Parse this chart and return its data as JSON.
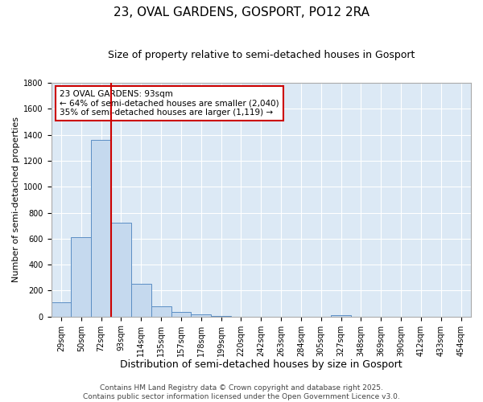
{
  "title1": "23, OVAL GARDENS, GOSPORT, PO12 2RA",
  "title2": "Size of property relative to semi-detached houses in Gosport",
  "xlabel": "Distribution of semi-detached houses by size in Gosport",
  "ylabel": "Number of semi-detached properties",
  "categories": [
    "29sqm",
    "50sqm",
    "72sqm",
    "93sqm",
    "114sqm",
    "135sqm",
    "157sqm",
    "178sqm",
    "199sqm",
    "220sqm",
    "242sqm",
    "263sqm",
    "284sqm",
    "305sqm",
    "327sqm",
    "348sqm",
    "369sqm",
    "390sqm",
    "412sqm",
    "433sqm",
    "454sqm"
  ],
  "values": [
    110,
    610,
    1360,
    725,
    255,
    80,
    35,
    15,
    5,
    0,
    0,
    0,
    0,
    0,
    10,
    0,
    0,
    0,
    0,
    0,
    0
  ],
  "bar_color": "#c5d9ee",
  "bar_edge_color": "#5b8ec4",
  "redline_index": 3,
  "ylim": [
    0,
    1800
  ],
  "yticks": [
    0,
    200,
    400,
    600,
    800,
    1000,
    1200,
    1400,
    1600,
    1800
  ],
  "vline_color": "#cc0000",
  "background_color": "#dce9f5",
  "grid_color": "#ffffff",
  "annotation_line1": "23 OVAL GARDENS: 93sqm",
  "annotation_line2": "← 64% of semi-detached houses are smaller (2,040)",
  "annotation_line3": "35% of semi-detached houses are larger (1,119) →",
  "annotation_box_color": "#ffffff",
  "annotation_box_edge": "#cc0000",
  "footer1": "Contains HM Land Registry data © Crown copyright and database right 2025.",
  "footer2": "Contains public sector information licensed under the Open Government Licence v3.0.",
  "title1_fontsize": 11,
  "title2_fontsize": 9,
  "xlabel_fontsize": 9,
  "ylabel_fontsize": 8,
  "tick_fontsize": 7,
  "annotation_fontsize": 7.5,
  "footer_fontsize": 6.5
}
